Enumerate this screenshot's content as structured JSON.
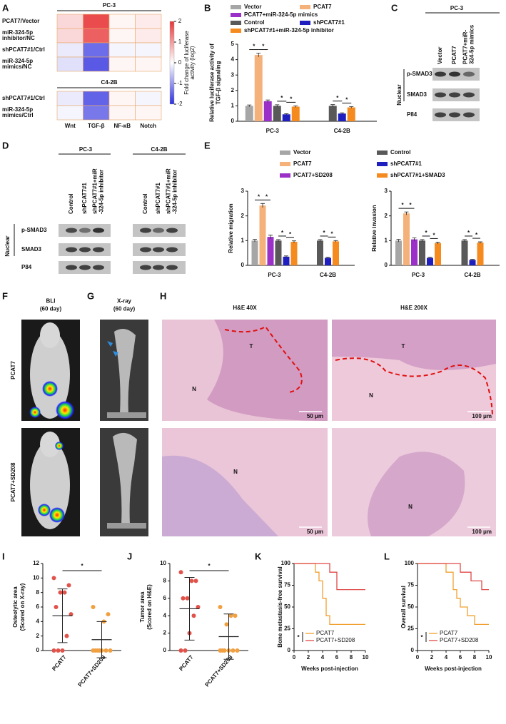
{
  "figure": {
    "panel_labels": [
      "A",
      "B",
      "C",
      "D",
      "E",
      "F",
      "G",
      "H",
      "I",
      "J",
      "K",
      "L"
    ],
    "C": {
      "title": "PC-3",
      "lanes": [
        "Vector",
        "PCAT7",
        [
          "PCAT7+miR-",
          "324-5p mimics"
        ]
      ],
      "fraction": "Nuclear",
      "rows": [
        "p-SMAD3",
        "SMAD3",
        "P84"
      ]
    },
    "D": {
      "groups": [
        {
          "title": "PC-3",
          "lanes": [
            "Control",
            "shPCAT7#1",
            [
              "shPCAT7#1+miR",
              "-324-5p inhibitor"
            ]
          ]
        },
        {
          "title": "C4-2B",
          "lanes": [
            "Control",
            "shPCAT7#1",
            [
              "shPCAT7#1+miR",
              "-324-5p inhibitor"
            ]
          ]
        }
      ],
      "fraction": "Nuclear",
      "rows": [
        "p-SMAD3",
        "SMAD3",
        "P84"
      ]
    },
    "F": {
      "title": [
        "BLI",
        "(60 day)"
      ],
      "rows": [
        "PCAT7",
        "PCAT7+SD208"
      ]
    },
    "G": {
      "title": [
        "X-ray",
        "(60 day)"
      ]
    },
    "H": {
      "columns": [
        {
          "title": "H&E  40X",
          "scale": "50 μm"
        },
        {
          "title": "H&E  200X",
          "scale": "100 μm"
        }
      ],
      "tumor": "T",
      "normal": "N"
    }
  },
  "chart_data": [
    {
      "type": "heatmap",
      "blocks": [
        {
          "title": "PC-3",
          "rows": [
            "PCAT7/Vector",
            [
              "miR-324-5p",
              "inhibitor/NC"
            ],
            "shPCAT7#1/Ctrl",
            [
              "miR-324-5p",
              "mimics/NC"
            ]
          ],
          "values": [
            [
              0.4,
              1.8,
              0.1,
              0.2
            ],
            [
              0.4,
              1.6,
              0.1,
              0.2
            ],
            [
              -0.2,
              -1.4,
              -0.1,
              -0.1
            ],
            [
              -0.3,
              -1.6,
              0.1,
              0.1
            ]
          ]
        },
        {
          "title": "C4-2B",
          "rows": [
            "shPCAT7#1/Ctrl",
            [
              "miR-324-5p",
              "mimics/Ctrl"
            ]
          ],
          "values": [
            [
              -0.2,
              -1.5,
              0.1,
              -0.1
            ],
            [
              -0.1,
              -1.3,
              0.1,
              0.1
            ]
          ]
        }
      ],
      "categories": [
        "Wnt",
        "TGF-β",
        "NF-κB",
        "Notch"
      ],
      "zlim": [
        -2,
        2
      ],
      "zticks": [
        -2,
        -1,
        0,
        1,
        2
      ],
      "colorbar_label": [
        "Fold change of luciferase",
        "activity (log2)"
      ],
      "colors": [
        "#2f2fe0",
        "#ffffff",
        "#e8383a"
      ]
    },
    {
      "type": "bar",
      "ylabel": [
        "Relative luciferase activity of",
        "TGF-β signaling"
      ],
      "categories": [
        "PC-3",
        "C4-2B"
      ],
      "series": [
        {
          "name": "Vector",
          "color": "#a6a6a6",
          "values": [
            1.0,
            null
          ],
          "errors": [
            0.06,
            null
          ]
        },
        {
          "name": "PCAT7",
          "color": "#f4b27a",
          "values": [
            4.3,
            null
          ],
          "errors": [
            0.12,
            null
          ]
        },
        {
          "name": "PCAT7+miR-324-5p mimics",
          "color": "#9b30c8",
          "values": [
            1.3,
            null
          ],
          "errors": [
            0.08,
            null
          ]
        },
        {
          "name": "Control",
          "color": "#595959",
          "values": [
            1.0,
            1.0
          ],
          "errors": [
            0.07,
            0.08
          ]
        },
        {
          "name": "shPCAT7#1",
          "color": "#1f1fbf",
          "values": [
            0.45,
            0.5
          ],
          "errors": [
            0.04,
            0.05
          ]
        },
        {
          "name": "shPCAT7#1+miR-324-5p inhibitor",
          "color": "#f58a1f",
          "values": [
            0.95,
            0.9
          ],
          "errors": [
            0.05,
            0.05
          ]
        }
      ],
      "ylim": [
        0,
        5
      ],
      "yticks": [
        0,
        1,
        2,
        3,
        4,
        5
      ],
      "comparisons": [
        {
          "category": "PC-3",
          "series": [
            "Vector",
            "PCAT7"
          ],
          "label": "*"
        },
        {
          "category": "PC-3",
          "series": [
            "PCAT7",
            "PCAT7+miR-324-5p mimics"
          ],
          "label": "*"
        },
        {
          "category": "PC-3",
          "series": [
            "Control",
            "shPCAT7#1"
          ],
          "label": "*"
        },
        {
          "category": "PC-3",
          "series": [
            "shPCAT7#1",
            "shPCAT7#1+miR-324-5p inhibitor"
          ],
          "label": "*"
        },
        {
          "category": "C4-2B",
          "series": [
            "Control",
            "shPCAT7#1"
          ],
          "label": "*"
        },
        {
          "category": "C4-2B",
          "series": [
            "shPCAT7#1",
            "shPCAT7#1+miR-324-5p inhibitor"
          ],
          "label": "*"
        }
      ]
    },
    {
      "type": "bar",
      "ylabel": "Relative migration",
      "categories": [
        "PC-3",
        "C4-2B"
      ],
      "series": [
        {
          "name": "Vector",
          "color": "#a6a6a6",
          "values": [
            1.0,
            null
          ],
          "errors": [
            0.05,
            null
          ]
        },
        {
          "name": "PCAT7",
          "color": "#f4b27a",
          "values": [
            2.42,
            null
          ],
          "errors": [
            0.08,
            null
          ]
        },
        {
          "name": "PCAT7+SD208",
          "color": "#9b30c8",
          "values": [
            1.15,
            null
          ],
          "errors": [
            0.07,
            null
          ]
        },
        {
          "name": "Control",
          "color": "#595959",
          "values": [
            1.0,
            1.0
          ],
          "errors": [
            0.04,
            0.04
          ]
        },
        {
          "name": "shPCAT7#1",
          "color": "#1f1fbf",
          "values": [
            0.35,
            0.3
          ],
          "errors": [
            0.03,
            0.03
          ]
        },
        {
          "name": "shPCAT7#1+SMAD3",
          "color": "#f58a1f",
          "values": [
            0.95,
            0.97
          ],
          "errors": [
            0.04,
            0.03
          ]
        }
      ],
      "ylim": [
        0,
        3
      ],
      "yticks": [
        0,
        1,
        2,
        3
      ],
      "comparisons": [
        {
          "category": "PC-3",
          "series": [
            "Vector",
            "PCAT7"
          ],
          "label": "*"
        },
        {
          "category": "PC-3",
          "series": [
            "PCAT7",
            "PCAT7+SD208"
          ],
          "label": "*"
        },
        {
          "category": "PC-3",
          "series": [
            "Control",
            "shPCAT7#1"
          ],
          "label": "*"
        },
        {
          "category": "PC-3",
          "series": [
            "shPCAT7#1",
            "shPCAT7#1+SMAD3"
          ],
          "label": "*"
        },
        {
          "category": "C4-2B",
          "series": [
            "Control",
            "shPCAT7#1"
          ],
          "label": "*"
        },
        {
          "category": "C4-2B",
          "series": [
            "shPCAT7#1",
            "shPCAT7#1+SMAD3"
          ],
          "label": "*"
        }
      ]
    },
    {
      "type": "bar",
      "ylabel": "Relative invasion",
      "categories": [
        "PC-3",
        "C4-2B"
      ],
      "series": [
        {
          "color": "#a6a6a6",
          "values": [
            1.0,
            null
          ],
          "errors": [
            0.05,
            null
          ]
        },
        {
          "color": "#f4b27a",
          "values": [
            2.1,
            null
          ],
          "errors": [
            0.06,
            null
          ]
        },
        {
          "color": "#9b30c8",
          "values": [
            1.05,
            null
          ],
          "errors": [
            0.06,
            null
          ]
        },
        {
          "color": "#595959",
          "values": [
            1.0,
            1.0
          ],
          "errors": [
            0.04,
            0.04
          ]
        },
        {
          "color": "#1f1fbf",
          "values": [
            0.3,
            0.22
          ],
          "errors": [
            0.03,
            0.02
          ]
        },
        {
          "color": "#f58a1f",
          "values": [
            0.9,
            0.92
          ],
          "errors": [
            0.04,
            0.03
          ]
        }
      ],
      "ylim": [
        0,
        3
      ],
      "yticks": [
        0,
        1,
        2,
        3
      ],
      "comparisons": [
        {
          "category": "PC-3",
          "series": [
            0,
            1
          ],
          "label": "*"
        },
        {
          "category": "PC-3",
          "series": [
            1,
            2
          ],
          "label": "*"
        },
        {
          "category": "PC-3",
          "series": [
            3,
            4
          ],
          "label": "*"
        },
        {
          "category": "PC-3",
          "series": [
            4,
            5
          ],
          "label": "*"
        },
        {
          "category": "C4-2B",
          "series": [
            3,
            4
          ],
          "label": "*"
        },
        {
          "category": "C4-2B",
          "series": [
            4,
            5
          ],
          "label": "*"
        }
      ]
    },
    {
      "type": "dot",
      "ylabel": [
        "Osteolytic area",
        "(Scored on X-ray)"
      ],
      "categories": [
        "PCAT7",
        "PCAT7+SD208"
      ],
      "groups": [
        {
          "color": "#e0524a",
          "values": [
            10,
            9,
            8,
            8,
            6,
            5,
            2,
            0,
            0,
            0
          ],
          "mean": 4.8,
          "error": 3.7
        },
        {
          "color": "#f0a040",
          "values": [
            6,
            5,
            4,
            0,
            0,
            0,
            0,
            0,
            0,
            0
          ],
          "mean": 1.5,
          "error": 2.5
        }
      ],
      "ylim": [
        0,
        12
      ],
      "yticks": [
        0,
        2,
        4,
        6,
        8,
        10,
        12
      ],
      "significance": "*"
    },
    {
      "type": "dot",
      "ylabel": [
        "Tumor area",
        "(Scored on H&E)"
      ],
      "categories": [
        "PCAT7",
        "PCAT7+SD208"
      ],
      "groups": [
        {
          "color": "#e0524a",
          "values": [
            9,
            8,
            8,
            6,
            6,
            5,
            4,
            2,
            0,
            0
          ],
          "mean": 4.8,
          "error": 3.6
        },
        {
          "color": "#f0a040",
          "values": [
            5,
            4,
            4,
            3,
            0,
            0,
            0,
            0,
            0,
            0
          ],
          "mean": 1.6,
          "error": 2.6
        }
      ],
      "ylim": [
        0,
        10
      ],
      "yticks": [
        0,
        2,
        4,
        6,
        8,
        10
      ],
      "significance": "*"
    },
    {
      "type": "survival",
      "ylabel": "Bone metastasis-free survival",
      "xlabel": "Weeks post-injection",
      "xlim": [
        0,
        10
      ],
      "xticks": [
        0,
        2,
        4,
        6,
        8,
        10
      ],
      "ylim": [
        0,
        100
      ],
      "yticks": [
        0,
        25,
        50,
        75,
        100
      ],
      "series": [
        {
          "name": "PCAT7",
          "color": "#f0a030",
          "x": [
            0,
            3,
            3,
            3.5,
            3.5,
            4,
            4,
            4.5,
            4.5,
            5,
            5,
            10
          ],
          "values": [
            100,
            100,
            90,
            90,
            80,
            80,
            60,
            60,
            40,
            40,
            30,
            30
          ]
        },
        {
          "name": "PCAT7+SD208",
          "color": "#e04848",
          "x": [
            0,
            5,
            5,
            6,
            6,
            10
          ],
          "values": [
            100,
            100,
            90,
            90,
            70,
            70
          ]
        }
      ],
      "significance": "*"
    },
    {
      "type": "survival",
      "ylabel": "Overall survival",
      "xlabel": "Weeks post-injection",
      "xlim": [
        0,
        10
      ],
      "xticks": [
        0,
        2,
        4,
        6,
        8,
        10
      ],
      "ylim": [
        0,
        100
      ],
      "yticks": [
        0,
        25,
        50,
        75,
        100
      ],
      "series": [
        {
          "name": "PCAT7",
          "color": "#f0a030",
          "x": [
            0,
            4,
            4,
            5,
            5,
            5.5,
            5.5,
            6,
            6,
            7,
            7,
            8,
            8,
            10
          ],
          "values": [
            100,
            100,
            90,
            90,
            70,
            70,
            60,
            60,
            50,
            50,
            40,
            40,
            30,
            30
          ]
        },
        {
          "name": "PCAT7+SD208",
          "color": "#e04848",
          "x": [
            0,
            6,
            6,
            7.5,
            7.5,
            9,
            9,
            10
          ],
          "values": [
            100,
            100,
            90,
            90,
            80,
            80,
            70,
            70
          ]
        }
      ],
      "significance": "*"
    }
  ]
}
